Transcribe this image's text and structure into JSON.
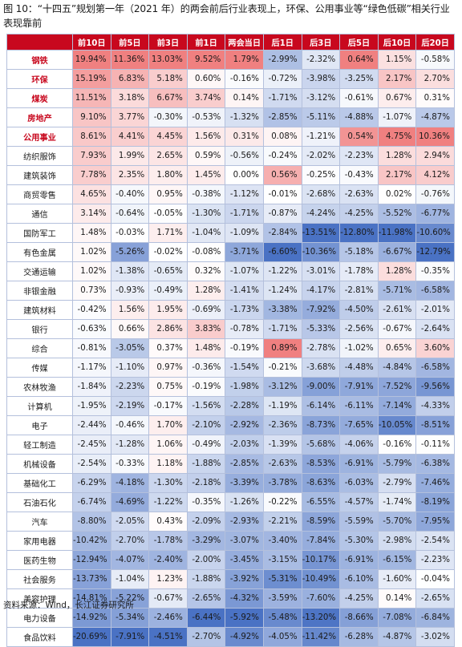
{
  "title": "图 10：“十四五”规划第一年（2021 年）的两会前后行业表现上，环保、公用事业等“绿色低碳”相关行业表现靠前",
  "source": "资料来源：Wind，长江证券研究所",
  "colors": {
    "header_bg": "#c8081e",
    "header_text": "#ffffff",
    "highlight_text": "#c8081e",
    "positive_scale": "#f08080",
    "negative_scale": "#4a72c4"
  },
  "columns": [
    "",
    "前10日",
    "前5日",
    "前3日",
    "前1日",
    "两会当日",
    "后1日",
    "后3日",
    "后5日",
    "后10日",
    "后20日"
  ],
  "rows": [
    {
      "name": "钢铁",
      "highlight": true,
      "values": [
        "19.94%",
        "11.36%",
        "13.03%",
        "9.52%",
        "1.79%",
        "-2.99%",
        "-2.32%",
        "0.64%",
        "1.15%",
        "-0.58%"
      ]
    },
    {
      "name": "环保",
      "highlight": true,
      "values": [
        "15.19%",
        "6.83%",
        "5.18%",
        "0.60%",
        "-0.16%",
        "-0.72%",
        "-3.98%",
        "-3.25%",
        "2.17%",
        "2.70%"
      ]
    },
    {
      "name": "煤炭",
      "highlight": true,
      "values": [
        "11.51%",
        "3.18%",
        "6.67%",
        "3.74%",
        "0.14%",
        "-1.71%",
        "-3.12%",
        "-0.61%",
        "0.67%",
        "0.31%"
      ]
    },
    {
      "name": "房地产",
      "highlight": true,
      "values": [
        "9.10%",
        "3.77%",
        "-0.30%",
        "-0.53%",
        "-1.32%",
        "-2.85%",
        "-5.11%",
        "-4.88%",
        "-1.07%",
        "-4.87%"
      ]
    },
    {
      "name": "公用事业",
      "highlight": true,
      "values": [
        "8.61%",
        "4.41%",
        "4.45%",
        "1.56%",
        "0.31%",
        "0.08%",
        "-1.21%",
        "0.54%",
        "4.75%",
        "10.36%"
      ]
    },
    {
      "name": "纺织服饰",
      "highlight": false,
      "values": [
        "7.93%",
        "1.99%",
        "2.65%",
        "0.59%",
        "-0.56%",
        "-0.24%",
        "-2.02%",
        "-2.23%",
        "1.28%",
        "2.94%"
      ]
    },
    {
      "name": "建筑装饰",
      "highlight": false,
      "values": [
        "7.78%",
        "2.35%",
        "1.80%",
        "1.45%",
        "0.00%",
        "0.56%",
        "-0.25%",
        "-0.43%",
        "2.17%",
        "4.12%"
      ]
    },
    {
      "name": "商贸零售",
      "highlight": false,
      "values": [
        "4.65%",
        "-0.40%",
        "0.95%",
        "-0.38%",
        "-1.12%",
        "-0.01%",
        "-2.68%",
        "-2.63%",
        "0.02%",
        "-0.76%"
      ]
    },
    {
      "name": "通信",
      "highlight": false,
      "values": [
        "3.14%",
        "-0.64%",
        "-0.05%",
        "-1.30%",
        "-1.71%",
        "-0.87%",
        "-4.24%",
        "-4.25%",
        "-5.52%",
        "-6.77%"
      ]
    },
    {
      "name": "国防军工",
      "highlight": false,
      "values": [
        "1.48%",
        "-0.03%",
        "1.71%",
        "-1.04%",
        "-1.09%",
        "-2.84%",
        "-13.51%",
        "-12.80%",
        "-11.98%",
        "-10.60%"
      ]
    },
    {
      "name": "有色金属",
      "highlight": false,
      "values": [
        "1.02%",
        "-5.26%",
        "-0.02%",
        "-0.08%",
        "-3.71%",
        "-6.60%",
        "-10.36%",
        "-5.18%",
        "-6.67%",
        "-12.79%"
      ]
    },
    {
      "name": "交通运输",
      "highlight": false,
      "values": [
        "1.02%",
        "-1.38%",
        "-0.65%",
        "0.32%",
        "-1.07%",
        "-1.22%",
        "-3.01%",
        "-1.78%",
        "1.28%",
        "-0.35%"
      ]
    },
    {
      "name": "非银金融",
      "highlight": false,
      "values": [
        "0.73%",
        "-0.93%",
        "-0.49%",
        "1.28%",
        "-1.41%",
        "-1.24%",
        "-4.17%",
        "-2.81%",
        "-5.71%",
        "-6.58%"
      ]
    },
    {
      "name": "建筑材料",
      "highlight": false,
      "values": [
        "-0.42%",
        "1.56%",
        "1.95%",
        "-0.69%",
        "-1.73%",
        "-3.38%",
        "-7.92%",
        "-4.50%",
        "-2.61%",
        "-2.01%"
      ]
    },
    {
      "name": "银行",
      "highlight": false,
      "values": [
        "-0.63%",
        "0.66%",
        "2.86%",
        "3.83%",
        "-0.78%",
        "-1.71%",
        "-5.33%",
        "-2.56%",
        "-0.67%",
        "-2.64%"
      ]
    },
    {
      "name": "综合",
      "highlight": false,
      "values": [
        "-0.81%",
        "-3.05%",
        "0.37%",
        "1.48%",
        "-0.19%",
        "0.89%",
        "-2.78%",
        "-1.02%",
        "0.65%",
        "3.60%"
      ]
    },
    {
      "name": "传媒",
      "highlight": false,
      "values": [
        "-1.17%",
        "-1.10%",
        "0.97%",
        "-0.36%",
        "-1.54%",
        "-0.21%",
        "-3.68%",
        "-4.48%",
        "-4.84%",
        "-6.58%"
      ]
    },
    {
      "name": "农林牧渔",
      "highlight": false,
      "values": [
        "-1.84%",
        "-2.23%",
        "0.75%",
        "-0.19%",
        "-1.98%",
        "-3.12%",
        "-9.00%",
        "-7.91%",
        "-7.52%",
        "-9.56%"
      ]
    },
    {
      "name": "计算机",
      "highlight": false,
      "values": [
        "-1.95%",
        "-2.19%",
        "-0.17%",
        "-1.56%",
        "-2.28%",
        "-1.19%",
        "-6.14%",
        "-6.11%",
        "-7.14%",
        "-4.33%"
      ]
    },
    {
      "name": "电子",
      "highlight": false,
      "values": [
        "-2.44%",
        "-0.46%",
        "1.70%",
        "-2.10%",
        "-2.92%",
        "-2.36%",
        "-8.73%",
        "-7.65%",
        "-10.05%",
        "-8.51%"
      ]
    },
    {
      "name": "轻工制造",
      "highlight": false,
      "values": [
        "-2.45%",
        "-1.28%",
        "1.06%",
        "-0.49%",
        "-2.03%",
        "-1.39%",
        "-5.68%",
        "-4.06%",
        "-0.16%",
        "-0.11%"
      ]
    },
    {
      "name": "机械设备",
      "highlight": false,
      "values": [
        "-2.54%",
        "-0.33%",
        "1.18%",
        "-1.88%",
        "-2.85%",
        "-2.63%",
        "-8.53%",
        "-6.91%",
        "-5.79%",
        "-6.38%"
      ]
    },
    {
      "name": "基础化工",
      "highlight": false,
      "values": [
        "-6.29%",
        "-4.18%",
        "-1.30%",
        "-2.18%",
        "-3.39%",
        "-3.78%",
        "-8.63%",
        "-6.03%",
        "-2.79%",
        "-7.46%"
      ]
    },
    {
      "name": "石油石化",
      "highlight": false,
      "values": [
        "-6.74%",
        "-4.69%",
        "-1.22%",
        "-0.35%",
        "-1.26%",
        "-0.22%",
        "-6.55%",
        "-4.57%",
        "-1.74%",
        "-8.19%"
      ]
    },
    {
      "name": "汽车",
      "highlight": false,
      "values": [
        "-8.80%",
        "-2.05%",
        "0.43%",
        "-2.09%",
        "-2.93%",
        "-2.21%",
        "-8.59%",
        "-5.59%",
        "-5.70%",
        "-7.95%"
      ]
    },
    {
      "name": "家用电器",
      "highlight": false,
      "values": [
        "-10.42%",
        "-2.70%",
        "-1.78%",
        "-3.29%",
        "-3.07%",
        "-3.40%",
        "-7.84%",
        "-5.30%",
        "-2.98%",
        "-2.54%"
      ]
    },
    {
      "name": "医药生物",
      "highlight": false,
      "values": [
        "-12.94%",
        "-4.07%",
        "-2.40%",
        "-2.00%",
        "-3.45%",
        "-3.15%",
        "-10.17%",
        "-6.91%",
        "-6.15%",
        "-2.23%"
      ]
    },
    {
      "name": "社会服务",
      "highlight": false,
      "values": [
        "-13.73%",
        "-1.04%",
        "1.23%",
        "-1.88%",
        "-3.92%",
        "-5.31%",
        "-10.49%",
        "-6.10%",
        "-1.60%",
        "-0.04%"
      ]
    },
    {
      "name": "美容护理",
      "highlight": false,
      "values": [
        "-14.81%",
        "-5.22%",
        "-0.67%",
        "-2.65%",
        "-4.32%",
        "-3.59%",
        "-7.60%",
        "-4.25%",
        "0.14%",
        "-2.65%"
      ]
    },
    {
      "name": "电力设备",
      "highlight": false,
      "values": [
        "-14.92%",
        "-5.34%",
        "-2.46%",
        "-6.44%",
        "-5.92%",
        "-5.48%",
        "-13.20%",
        "-8.66%",
        "-7.08%",
        "-6.84%"
      ]
    },
    {
      "name": "食品饮料",
      "highlight": false,
      "values": [
        "-20.69%",
        "-7.91%",
        "-4.51%",
        "-2.70%",
        "-4.92%",
        "-4.05%",
        "-11.42%",
        "-6.28%",
        "-4.87%",
        "-3.02%"
      ]
    }
  ]
}
